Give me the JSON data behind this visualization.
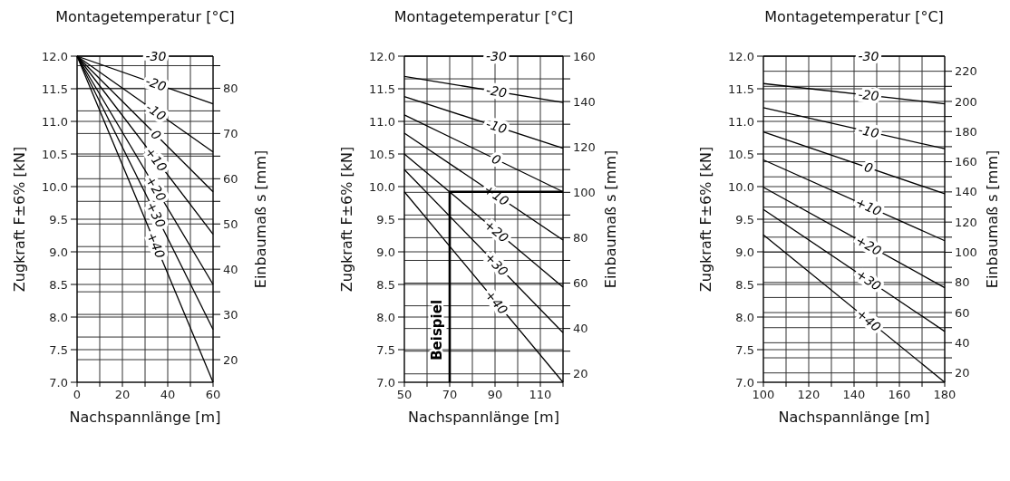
{
  "chart_data": [
    {
      "type": "line",
      "title": "Montagetemperatur [°C]",
      "xlabel": "Nachspannlänge [m]",
      "ylabel": "Zugkraft F±6% [kN]",
      "y2label": "Einbaumaß s [mm]",
      "xlim": [
        0,
        60
      ],
      "xticks": [
        0,
        {
          "value": 10,
          "label": null
        },
        20,
        {
          "value": 30,
          "label": null
        },
        40,
        {
          "value": 50,
          "label": null
        },
        60
      ],
      "ylim": [
        7,
        12
      ],
      "yticks": [
        {
          "value": 7,
          "label": "7.0"
        },
        7.5,
        {
          "value": 8,
          "label": "8.0"
        },
        8.5,
        {
          "value": 9,
          "label": "9.0"
        },
        9.5,
        {
          "value": 10,
          "label": "10.0"
        },
        10.5,
        {
          "value": 11,
          "label": "11.0"
        },
        11.5,
        {
          "value": 12,
          "label": "12.0"
        }
      ],
      "y2lim": [
        15,
        87.1
      ],
      "y2ticks": [
        20,
        {
          "value": 25,
          "label": null
        },
        30,
        {
          "value": 35,
          "label": null
        },
        40,
        {
          "value": 45,
          "label": null
        },
        50,
        {
          "value": 55,
          "label": null
        },
        60,
        {
          "value": 65,
          "label": null
        },
        70,
        {
          "value": 75,
          "label": null
        },
        80,
        {
          "value": 85,
          "label": null
        }
      ],
      "grid": true,
      "series": [
        {
          "name": "-30",
          "color": "#000000",
          "x": [
            0,
            60
          ],
          "values": [
            12,
            12
          ]
        },
        {
          "name": "-20",
          "color": "#000000",
          "x": [
            0,
            60
          ],
          "values": [
            12,
            11.27
          ]
        },
        {
          "name": "-10",
          "color": "#000000",
          "x": [
            0,
            60
          ],
          "values": [
            12,
            10.53
          ]
        },
        {
          "name": "0",
          "color": "#000000",
          "x": [
            0,
            60
          ],
          "values": [
            12,
            9.92
          ]
        },
        {
          "name": "+10",
          "color": "#000000",
          "x": [
            0,
            60
          ],
          "values": [
            12,
            9.27
          ]
        },
        {
          "name": "+20",
          "color": "#000000",
          "x": [
            0,
            60
          ],
          "values": [
            12,
            8.5
          ]
        },
        {
          "name": "+30",
          "color": "#000000",
          "x": [
            0,
            60
          ],
          "values": [
            12,
            7.81
          ]
        },
        {
          "name": "+40",
          "color": "#000000",
          "x": [
            0,
            60
          ],
          "values": [
            12,
            7.0
          ]
        }
      ]
    },
    {
      "type": "line",
      "title": "Montagetemperatur [°C]",
      "xlabel": "Nachspannlänge [m]",
      "ylabel": "Zugkraft F±6% [kN]",
      "y2label": "Einbaumaß s [mm]",
      "xlim": [
        50,
        120
      ],
      "xticks": [
        50,
        {
          "value": 60,
          "label": null
        },
        70,
        {
          "value": 80,
          "label": null
        },
        90,
        {
          "value": 100,
          "label": null
        },
        110,
        {
          "value": 120,
          "label": null
        }
      ],
      "ylim": [
        7,
        12
      ],
      "yticks": [
        {
          "value": 7,
          "label": "7.0"
        },
        7.5,
        {
          "value": 8,
          "label": "8.0"
        },
        8.5,
        {
          "value": 9,
          "label": "9.0"
        },
        9.5,
        {
          "value": 10,
          "label": "10.0"
        },
        10.5,
        {
          "value": 11,
          "label": "11.0"
        },
        11.5,
        {
          "value": 12,
          "label": "12.0"
        }
      ],
      "y2lim": [
        16.3,
        160
      ],
      "y2ticks": [
        20,
        {
          "value": 30,
          "label": null
        },
        40,
        {
          "value": 50,
          "label": null
        },
        60,
        {
          "value": 70,
          "label": null
        },
        80,
        {
          "value": 90,
          "label": null
        },
        100,
        {
          "value": 110,
          "label": null
        },
        120,
        {
          "value": 130,
          "label": null
        },
        140,
        {
          "value": 150,
          "label": null
        },
        160
      ],
      "grid": true,
      "annotations": [
        {
          "text": "Beispiel",
          "x": 70,
          "y": 7.8
        }
      ],
      "series": [
        {
          "name": "-30",
          "color": "#000000",
          "x": [
            50,
            120
          ],
          "values": [
            12,
            12
          ]
        },
        {
          "name": "-20",
          "color": "#000000",
          "x": [
            50,
            120
          ],
          "values": [
            11.69,
            11.29
          ]
        },
        {
          "name": "-10",
          "color": "#000000",
          "x": [
            50,
            120
          ],
          "values": [
            11.38,
            10.59
          ]
        },
        {
          "name": "0",
          "color": "#000000",
          "x": [
            50,
            120
          ],
          "values": [
            11.1,
            9.92
          ]
        },
        {
          "name": "+10",
          "color": "#000000",
          "x": [
            50,
            120
          ],
          "values": [
            10.82,
            9.18
          ]
        },
        {
          "name": "+20",
          "color": "#000000",
          "x": [
            50,
            120
          ],
          "values": [
            10.5,
            8.46
          ]
        },
        {
          "name": "+30",
          "color": "#000000",
          "x": [
            50,
            120
          ],
          "values": [
            10.26,
            7.76
          ]
        },
        {
          "name": "+40",
          "color": "#000000",
          "x": [
            50,
            120
          ],
          "values": [
            9.92,
            7.0
          ]
        },
        {
          "color": "#000000",
          "x": [
            70,
            70,
            120
          ],
          "values": [
            7.0,
            9.92,
            9.92
          ]
        }
      ]
    },
    {
      "type": "line",
      "title": "Montagetemperatur [°C]",
      "xlabel": "Nachspannlänge [m]",
      "ylabel": "Zugkraft F±6% [kN]",
      "y2label": "Einbaumaß s [mm]",
      "xlim": [
        100,
        180
      ],
      "xticks": [
        100,
        {
          "value": 110,
          "label": null
        },
        120,
        {
          "value": 130,
          "label": null
        },
        140,
        {
          "value": 150,
          "label": null
        },
        160,
        {
          "value": 170,
          "label": null
        },
        180
      ],
      "ylim": [
        7,
        12
      ],
      "yticks": [
        {
          "value": 7,
          "label": "7.0"
        },
        7.5,
        {
          "value": 8,
          "label": "8.0"
        },
        8.5,
        {
          "value": 9,
          "label": "9.0"
        },
        9.5,
        {
          "value": 10,
          "label": "10.0"
        },
        10.5,
        {
          "value": 11,
          "label": "11.0"
        },
        11.5,
        {
          "value": 12,
          "label": "12.0"
        }
      ],
      "y2lim": [
        13.8,
        230
      ],
      "y2ticks": [
        20,
        {
          "value": 30,
          "label": null
        },
        40,
        {
          "value": 50,
          "label": null
        },
        60,
        {
          "value": 70,
          "label": null
        },
        80,
        {
          "value": 90,
          "label": null
        },
        100,
        {
          "value": 110,
          "label": null
        },
        120,
        {
          "value": 130,
          "label": null
        },
        140,
        {
          "value": 150,
          "label": null
        },
        160,
        {
          "value": 170,
          "label": null
        },
        180,
        {
          "value": 190,
          "label": null
        },
        200,
        {
          "value": 210,
          "label": null
        },
        220
      ],
      "grid": true,
      "series": [
        {
          "name": "-30",
          "color": "#000000",
          "x": [
            100,
            180
          ],
          "values": [
            12,
            12
          ]
        },
        {
          "name": "-20",
          "color": "#000000",
          "x": [
            100,
            180
          ],
          "values": [
            11.58,
            11.27
          ]
        },
        {
          "name": "-10",
          "color": "#000000",
          "x": [
            100,
            180
          ],
          "values": [
            11.21,
            10.58
          ]
        },
        {
          "name": "0",
          "color": "#000000",
          "x": [
            100,
            180
          ],
          "values": [
            10.84,
            9.89
          ]
        },
        {
          "name": "+10",
          "color": "#000000",
          "x": [
            100,
            180
          ],
          "values": [
            10.41,
            9.17
          ]
        },
        {
          "name": "+20",
          "color": "#000000",
          "x": [
            100,
            180
          ],
          "values": [
            9.99,
            8.45
          ]
        },
        {
          "name": "+30",
          "color": "#000000",
          "x": [
            100,
            180
          ],
          "values": [
            9.65,
            7.78
          ]
        },
        {
          "name": "+40",
          "color": "#000000",
          "x": [
            100,
            180
          ],
          "values": [
            9.26,
            7.0
          ]
        }
      ]
    }
  ]
}
